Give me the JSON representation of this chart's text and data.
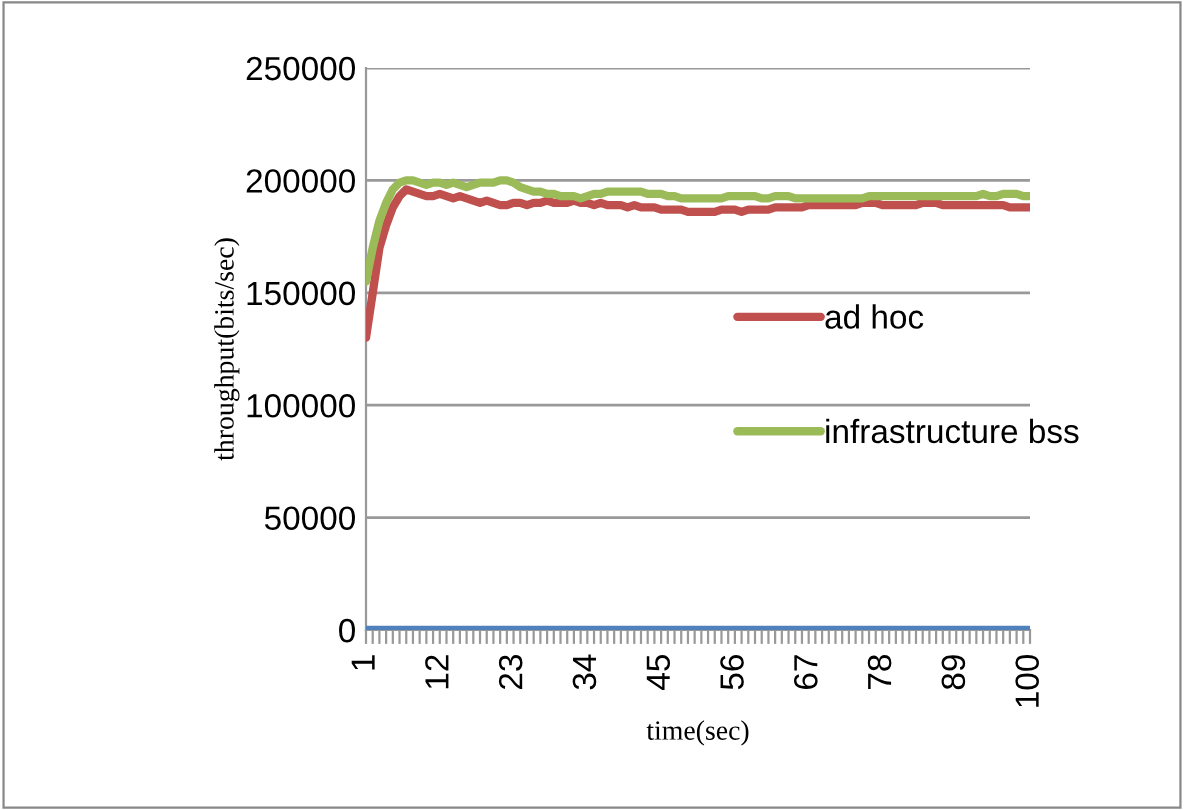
{
  "chart_data": {
    "type": "line",
    "xlabel": "time(sec)",
    "ylabel": "throughput(bits/sec)",
    "categories": [
      "1",
      null,
      null,
      null,
      null,
      null,
      null,
      null,
      null,
      null,
      null,
      "12",
      null,
      null,
      null,
      null,
      null,
      null,
      null,
      null,
      null,
      null,
      "23",
      null,
      null,
      null,
      null,
      null,
      null,
      null,
      null,
      null,
      null,
      "34",
      null,
      null,
      null,
      null,
      null,
      null,
      null,
      null,
      null,
      null,
      "45",
      null,
      null,
      null,
      null,
      null,
      null,
      null,
      null,
      null,
      null,
      "56",
      null,
      null,
      null,
      null,
      null,
      null,
      null,
      null,
      null,
      null,
      "67",
      null,
      null,
      null,
      null,
      null,
      null,
      null,
      null,
      null,
      null,
      "78",
      null,
      null,
      null,
      null,
      null,
      null,
      null,
      null,
      null,
      null,
      "89",
      null,
      null,
      null,
      null,
      null,
      null,
      null,
      null,
      null,
      null,
      "100"
    ],
    "series": [
      {
        "name": "ad hoc",
        "color": "#c0504d",
        "values": [
          130000,
          150000,
          170000,
          180000,
          188000,
          193000,
          196000,
          195000,
          194000,
          193000,
          193000,
          194000,
          193000,
          192000,
          193000,
          192000,
          191000,
          190000,
          191000,
          190000,
          189000,
          189000,
          190000,
          190000,
          189000,
          190000,
          190000,
          191000,
          190000,
          190000,
          190000,
          191000,
          190000,
          190000,
          189000,
          190000,
          189000,
          189000,
          189000,
          188000,
          189000,
          188000,
          188000,
          188000,
          187000,
          187000,
          187000,
          187000,
          186000,
          186000,
          186000,
          186000,
          186000,
          187000,
          187000,
          187000,
          186000,
          187000,
          187000,
          187000,
          187000,
          188000,
          188000,
          188000,
          188000,
          188000,
          189000,
          189000,
          189000,
          189000,
          189000,
          189000,
          189000,
          189000,
          190000,
          190000,
          190000,
          189000,
          189000,
          189000,
          189000,
          189000,
          189000,
          190000,
          190000,
          190000,
          189000,
          189000,
          189000,
          189000,
          189000,
          189000,
          189000,
          189000,
          189000,
          189000,
          188000,
          188000,
          188000,
          188000
        ]
      },
      {
        "name": "infrastructure bss",
        "color": "#9bbb59",
        "values": [
          155000,
          170000,
          182000,
          190000,
          196000,
          199000,
          200000,
          200000,
          199000,
          198000,
          199000,
          199000,
          198000,
          199000,
          198000,
          197000,
          198000,
          199000,
          199000,
          199000,
          200000,
          200000,
          199000,
          197000,
          196000,
          195000,
          195000,
          194000,
          194000,
          193000,
          193000,
          193000,
          192000,
          193000,
          194000,
          194000,
          195000,
          195000,
          195000,
          195000,
          195000,
          195000,
          194000,
          194000,
          194000,
          193000,
          193000,
          192000,
          192000,
          192000,
          192000,
          192000,
          192000,
          192000,
          193000,
          193000,
          193000,
          193000,
          193000,
          192000,
          192000,
          193000,
          193000,
          193000,
          192000,
          192000,
          192000,
          192000,
          192000,
          192000,
          192000,
          192000,
          192000,
          192000,
          192000,
          193000,
          193000,
          193000,
          193000,
          193000,
          193000,
          193000,
          193000,
          193000,
          193000,
          193000,
          193000,
          193000,
          193000,
          193000,
          193000,
          193000,
          194000,
          193000,
          193000,
          194000,
          194000,
          194000,
          193000,
          193000
        ]
      },
      {
        "color": "#4f81bd",
        "values": [
          0,
          0,
          0,
          0,
          0,
          0,
          0,
          0,
          0,
          0,
          0,
          0,
          0,
          0,
          0,
          0,
          0,
          0,
          0,
          0,
          0,
          0,
          0,
          0,
          0,
          0,
          0,
          0,
          0,
          0,
          0,
          0,
          0,
          0,
          0,
          0,
          0,
          0,
          0,
          0,
          0,
          0,
          0,
          0,
          0,
          0,
          0,
          0,
          0,
          0,
          0,
          0,
          0,
          0,
          0,
          0,
          0,
          0,
          0,
          0,
          0,
          0,
          0,
          0,
          0,
          0,
          0,
          0,
          0,
          0,
          0,
          0,
          0,
          0,
          0,
          0,
          0,
          0,
          0,
          0,
          0,
          0,
          0,
          0,
          0,
          0,
          0,
          0,
          0,
          0,
          0,
          0,
          0,
          0,
          0,
          0,
          0,
          0,
          0,
          0
        ]
      }
    ],
    "ylim": [
      0,
      250000
    ],
    "yticks": [
      0,
      50000,
      100000,
      150000,
      200000,
      250000
    ],
    "grid": "y",
    "legend": "right"
  }
}
